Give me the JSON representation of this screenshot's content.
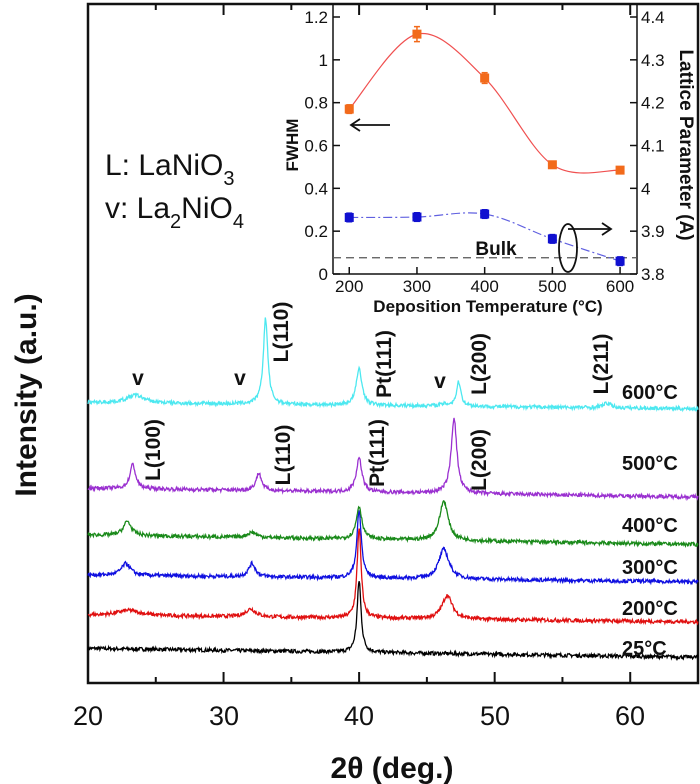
{
  "chart_data": [
    {
      "type": "line",
      "xlabel": "2θ (deg.)",
      "ylabel": "Intensity (a.u.)",
      "xlim": [
        20,
        65
      ],
      "ylim": [
        0,
        100
      ],
      "xticks": [
        "20",
        "30",
        "40",
        "50",
        "60"
      ],
      "grid": false,
      "legend_text": [
        {
          "prefix": "L: LaNiO",
          "sub": "3"
        },
        {
          "prefix": "v: La",
          "sub1": "2",
          "mid": "NiO",
          "sub2": "4"
        }
      ],
      "series": [
        {
          "name": "25°C",
          "color": "#000000",
          "baseline": [
            5.1,
            3.8
          ],
          "peaks": [
            {
              "x": 40.0,
              "y": 15.1,
              "fwhm": 0.35
            }
          ]
        },
        {
          "name": "200°C",
          "color": "#e01010",
          "baseline": [
            10.0,
            9.0
          ],
          "peaks": [
            {
              "x": 23.0,
              "y": 10.7,
              "fwhm": 2.0
            },
            {
              "x": 32.0,
              "y": 10.9,
              "fwhm": 0.9
            },
            {
              "x": 40.0,
              "y": 22.9,
              "fwhm": 0.35
            },
            {
              "x": 46.5,
              "y": 12.9,
              "fwhm": 0.9
            }
          ]
        },
        {
          "name": "300°C",
          "color": "#1010e0",
          "baseline": [
            15.9,
            14.9
          ],
          "peaks": [
            {
              "x": 22.8,
              "y": 17.6,
              "fwhm": 0.8
            },
            {
              "x": 32.1,
              "y": 17.6,
              "fwhm": 0.6
            },
            {
              "x": 40.0,
              "y": 25.3,
              "fwhm": 0.4
            },
            {
              "x": 46.25,
              "y": 19.7,
              "fwhm": 0.9
            }
          ]
        },
        {
          "name": "400°C",
          "color": "#1a8a1a",
          "baseline": [
            21.8,
            20.4
          ],
          "peaks": [
            {
              "x": 22.9,
              "y": 23.8,
              "fwhm": 0.7
            },
            {
              "x": 32.1,
              "y": 22.2,
              "fwhm": 0.8
            },
            {
              "x": 40.0,
              "y": 26.0,
              "fwhm": 0.5
            },
            {
              "x": 46.25,
              "y": 26.8,
              "fwhm": 0.75
            }
          ]
        },
        {
          "name": "500°C",
          "color": "#9a30d0",
          "baseline": [
            28.7,
            27.4
          ],
          "peaks": [
            {
              "x": 23.3,
              "y": 32.2,
              "fwhm": 0.5
            },
            {
              "x": 32.6,
              "y": 30.9,
              "fwhm": 0.5
            },
            {
              "x": 40.0,
              "y": 33.1,
              "fwhm": 0.5
            },
            {
              "x": 47.0,
              "y": 39.0,
              "fwhm": 0.5
            }
          ]
        },
        {
          "name": "600°C",
          "color": "#4de8f0",
          "baseline": [
            41.3,
            40.4
          ],
          "peaks": [
            {
              "x": 23.5,
              "y": 42.4,
              "fwhm": 1.5
            },
            {
              "x": 33.1,
              "y": 53.7,
              "fwhm": 0.4
            },
            {
              "x": 40.0,
              "y": 46.3,
              "fwhm": 0.5
            },
            {
              "x": 46.3,
              "y": 41.0,
              "fwhm": 1.0
            },
            {
              "x": 47.35,
              "y": 44.3,
              "fwhm": 0.4
            },
            {
              "x": 58.3,
              "y": 41.2,
              "fwhm": 0.7
            }
          ]
        }
      ],
      "annotations": {
        "v1": "v",
        "v2": "v",
        "v3": "v",
        "c_l110": "L(110)",
        "c_pt111": "Pt(111)",
        "c_l200": "L(200)",
        "c_l211": "L(211)",
        "p_l100": "L(100)",
        "p_l110": "L(110)",
        "p_pt111": "Pt(111)",
        "p_l200": "L(200)"
      }
    },
    {
      "type": "line",
      "xlabel": "Deposition Temperature (°C)",
      "ylabel": "FWHM",
      "ylabel_right": "Lattice Parameter (A)",
      "xlim": [
        176,
        625
      ],
      "ylim": [
        0,
        1.2
      ],
      "ylim_right": [
        3.8,
        4.4
      ],
      "xticks": [
        "200",
        "300",
        "400",
        "500",
        "600"
      ],
      "yticks": [
        "0",
        "0.2",
        "0.4",
        "0.6",
        "0.8",
        "1",
        "1.2"
      ],
      "yticks_right": [
        "3.8",
        "3.9",
        "4",
        "4.1",
        "4.2",
        "4.3",
        "4.4"
      ],
      "x": [
        200,
        300,
        400,
        500,
        600
      ],
      "series": [
        {
          "axis": "left",
          "color": "#f26a1b",
          "line_color": "#f05050",
          "values": [
            0.77,
            1.12,
            0.915,
            0.51,
            0.485
          ],
          "errors": [
            0.02,
            0.035,
            0.025,
            0.012,
            0.012
          ]
        },
        {
          "axis": "right",
          "color": "#1010d0",
          "line_color": "#6060e0",
          "values": [
            3.932,
            3.933,
            3.94,
            3.882,
            3.83
          ],
          "errors": [
            0.01,
            0.01,
            0.01,
            0.01,
            0.01
          ]
        }
      ],
      "reference": {
        "label": "Bulk",
        "value": 3.838
      }
    }
  ]
}
